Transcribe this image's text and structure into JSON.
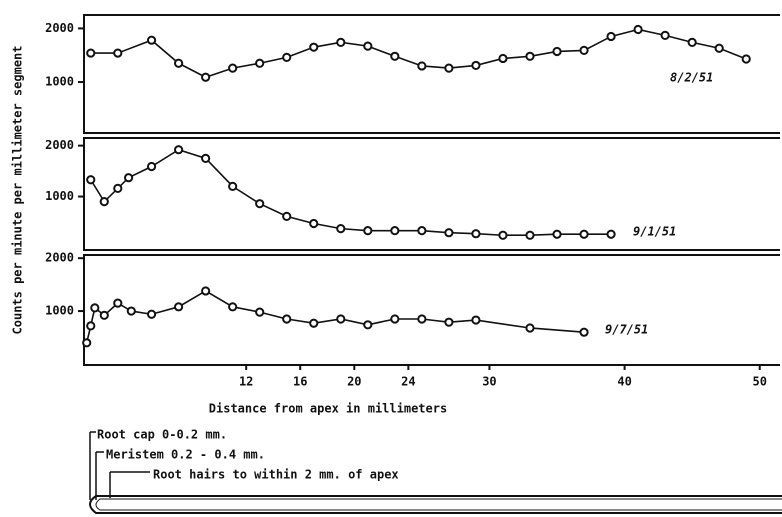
{
  "chart_data": [
    {
      "type": "line",
      "x": [
        0.5,
        2.5,
        5,
        7,
        9,
        11,
        13,
        15,
        17,
        19,
        21,
        23,
        25,
        27,
        29,
        31,
        33,
        35,
        37,
        39,
        41,
        43,
        45,
        47,
        49
      ],
      "series": [
        {
          "name": "8/2/51",
          "color": "#111111",
          "values": [
            1540,
            1540,
            1780,
            1350,
            1090,
            1260,
            1350,
            1460,
            1650,
            1740,
            1670,
            1480,
            1300,
            1260,
            1310,
            1440,
            1480,
            1570,
            1590,
            1850,
            1980,
            1870,
            1740,
            1630,
            1430
          ]
        }
      ],
      "xlim": [
        0,
        51.5
      ],
      "ylim": [
        50,
        2250
      ],
      "yticks": [
        1000,
        2000
      ],
      "ylabel": "Counts per minute per millimeter segment"
    },
    {
      "type": "line",
      "x": [
        0.5,
        1.5,
        2.5,
        3.3,
        5,
        7,
        9,
        11,
        13,
        15,
        17,
        19,
        21,
        23,
        25,
        27,
        29,
        31,
        33,
        35,
        37,
        39
      ],
      "series": [
        {
          "name": "9/1/51",
          "color": "#111111",
          "values": [
            1330,
            900,
            1160,
            1370,
            1590,
            1920,
            1750,
            1200,
            860,
            610,
            470,
            370,
            330,
            330,
            330,
            290,
            270,
            240,
            240,
            260,
            260,
            260
          ]
        }
      ],
      "xlim": [
        0,
        51.5
      ],
      "ylim": [
        -50,
        2150
      ],
      "yticks": [
        1000,
        2000
      ]
    },
    {
      "type": "line",
      "x": [
        0.2,
        0.5,
        0.8,
        1.5,
        2.5,
        3.5,
        5,
        7,
        9,
        11,
        13,
        15,
        17,
        19,
        21,
        23,
        25,
        27,
        29,
        33,
        37
      ],
      "series": [
        {
          "name": "9/7/51",
          "color": "#111111",
          "values": [
            400,
            720,
            1060,
            920,
            1150,
            1000,
            940,
            1080,
            1380,
            1080,
            980,
            850,
            770,
            850,
            740,
            850,
            850,
            790,
            830,
            680,
            600
          ]
        }
      ],
      "xlim": [
        0,
        51.5
      ],
      "ylim": [
        -20,
        2060
      ],
      "yticks": [
        1000,
        2000
      ],
      "xticks": [
        12,
        16,
        20,
        24,
        30,
        40,
        50
      ],
      "xlabel": "Distance from apex in millimeters"
    }
  ],
  "root_diagram": {
    "labels": [
      "Root cap  0-0.2 mm.",
      "Meristem 0.2 - 0.4 mm.",
      "Root hairs  to  within 2 mm. of apex"
    ]
  }
}
